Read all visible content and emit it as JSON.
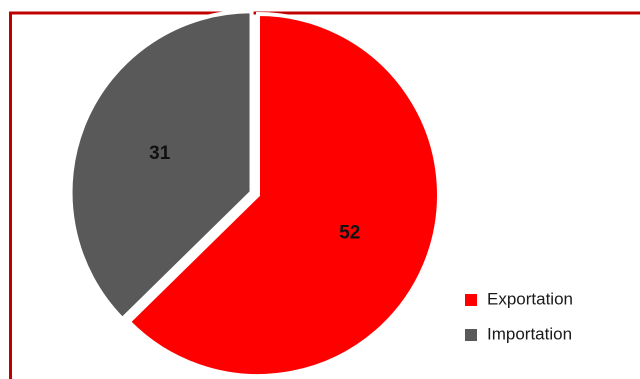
{
  "colors": {
    "frame": "#c00000",
    "background": "#ffffff"
  },
  "chart_data": {
    "type": "pie",
    "title": "",
    "categories": [
      "Exportation",
      "Importation"
    ],
    "values": [
      52,
      31
    ],
    "colors": [
      "#ff0000",
      "#595959"
    ],
    "exploded": [
      "Importation"
    ],
    "data_labels": [
      "52",
      "31"
    ],
    "legend_placement": "bottom-right"
  }
}
